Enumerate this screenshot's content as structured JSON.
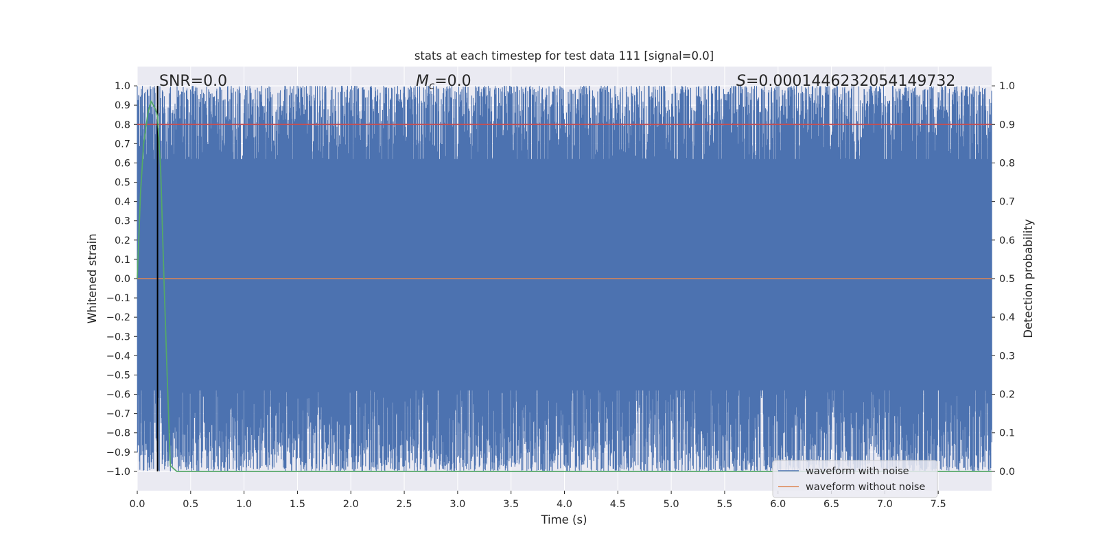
{
  "chart_data": {
    "type": "line",
    "title": "stats at each timestep for test data 111 [signal=0.0]",
    "xlabel": "Time (s)",
    "ylabel": "Whitened strain",
    "y2label": "Detection probability",
    "xlim": [
      0.0,
      8.0
    ],
    "ylim": [
      -1.1,
      1.1
    ],
    "y2lim": [
      -0.05,
      1.05
    ],
    "x_ticks": [
      "0.0",
      "0.5",
      "1.0",
      "1.5",
      "2.0",
      "2.5",
      "3.0",
      "3.5",
      "4.0",
      "4.5",
      "5.0",
      "5.5",
      "6.0",
      "6.5",
      "7.0",
      "7.5"
    ],
    "y_ticks": [
      "1.0",
      "0.9",
      "0.8",
      "0.7",
      "0.6",
      "0.5",
      "0.4",
      "0.3",
      "0.2",
      "0.1",
      "0.0",
      "−0.1",
      "−0.2",
      "−0.3",
      "−0.4",
      "−0.5",
      "−0.6",
      "−0.7",
      "−0.8",
      "−0.9",
      "−1.0"
    ],
    "y2_ticks": [
      "1.0",
      "0.9",
      "0.8",
      "0.7",
      "0.6",
      "0.5",
      "0.4",
      "0.3",
      "0.2",
      "0.1",
      "0.0"
    ],
    "grid": true,
    "legend_position": "lower-right",
    "annotations": {
      "snr": "SNR=0.0",
      "mc_symbol": "M",
      "mc_sub": "c",
      "mc_value": "=0.0",
      "s_symbol": "S",
      "s_value": "=0.0001446232054149732"
    },
    "series": [
      {
        "name": "waveform with noise",
        "axis": "left",
        "color": "#4c72b0",
        "description": "dense noise filling approximately -1.0 to 1.0 over 0-8 s",
        "range": [
          -1.0,
          1.0
        ]
      },
      {
        "name": "waveform without noise",
        "axis": "left",
        "color": "#dd8452",
        "x": [
          0.0,
          8.0
        ],
        "y": [
          0.0,
          0.0
        ]
      },
      {
        "axis": "right",
        "color": "#55a868",
        "x": [
          0.0,
          0.03,
          0.06,
          0.1,
          0.13,
          0.17,
          0.19,
          0.22,
          0.25,
          0.28,
          0.31,
          0.37,
          0.5,
          1.0,
          2.0,
          4.0,
          6.0,
          8.0
        ],
        "y": [
          0.5,
          0.72,
          0.85,
          0.93,
          0.96,
          0.94,
          0.92,
          0.78,
          0.5,
          0.25,
          0.015,
          0.0,
          0.0,
          0.0,
          0.0,
          0.0,
          0.0,
          0.0
        ]
      }
    ],
    "threshold": {
      "axis": "right",
      "value": 0.9,
      "color": "#c44e52"
    },
    "marker_line": {
      "x": 0.19,
      "color": "#000000"
    }
  }
}
